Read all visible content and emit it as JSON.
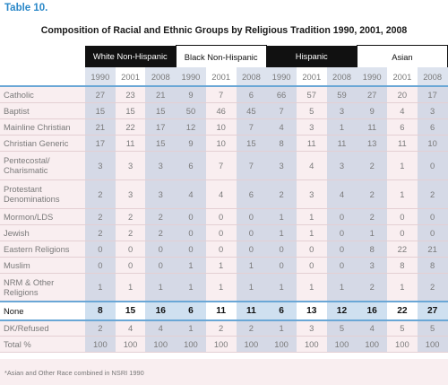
{
  "label": "Table 10.",
  "title": "Composition of Racial and Ethnic Groups by Religious Tradition 1990, 2001, 2008",
  "groups": [
    {
      "name": "White Non-Hispanic",
      "dark": true
    },
    {
      "name": "Black Non-Hispanic",
      "dark": false
    },
    {
      "name": "Hispanic",
      "dark": true
    },
    {
      "name": "Asian",
      "dark": false
    }
  ],
  "years": [
    "1990",
    "2001",
    "2008"
  ],
  "rows": [
    {
      "label": "Catholic",
      "values": [
        "27",
        "23",
        "21",
        "9",
        "7",
        "6",
        "66",
        "57",
        "59",
        "27",
        "20",
        "17"
      ]
    },
    {
      "label": "Baptist",
      "values": [
        "15",
        "15",
        "15",
        "50",
        "46",
        "45",
        "7",
        "5",
        "3",
        "9",
        "4",
        "3"
      ]
    },
    {
      "label": "Mainline Christian",
      "values": [
        "21",
        "22",
        "17",
        "12",
        "10",
        "7",
        "4",
        "3",
        "1",
        "11",
        "6",
        "6"
      ]
    },
    {
      "label": "Christian Generic",
      "values": [
        "17",
        "11",
        "15",
        "9",
        "10",
        "15",
        "8",
        "11",
        "11",
        "13",
        "11",
        "10"
      ]
    },
    {
      "label": "Pentecostal/ Charismatic",
      "values": [
        "3",
        "3",
        "3",
        "6",
        "7",
        "7",
        "3",
        "4",
        "3",
        "2",
        "1",
        "0"
      ]
    },
    {
      "label": "Protestant Denominations",
      "values": [
        "2",
        "3",
        "3",
        "4",
        "4",
        "6",
        "2",
        "3",
        "4",
        "2",
        "1",
        "2"
      ]
    },
    {
      "label": "Mormon/LDS",
      "values": [
        "2",
        "2",
        "2",
        "0",
        "0",
        "0",
        "1",
        "1",
        "0",
        "2",
        "0",
        "0"
      ]
    },
    {
      "label": "Jewish",
      "values": [
        "2",
        "2",
        "2",
        "0",
        "0",
        "0",
        "1",
        "1",
        "0",
        "1",
        "0",
        "0"
      ]
    },
    {
      "label": "Eastern Religions",
      "values": [
        "0",
        "0",
        "0",
        "0",
        "0",
        "0",
        "0",
        "0",
        "0",
        "8",
        "22",
        "21"
      ]
    },
    {
      "label": "Muslim",
      "values": [
        "0",
        "0",
        "0",
        "1",
        "1",
        "1",
        "0",
        "0",
        "0",
        "3",
        "8",
        "8"
      ]
    },
    {
      "label": "NRM & Other Religions",
      "values": [
        "1",
        "1",
        "1",
        "1",
        "1",
        "1",
        "1",
        "1",
        "1",
        "2",
        "1",
        "2"
      ]
    },
    {
      "label": "None",
      "values": [
        "8",
        "15",
        "16",
        "6",
        "11",
        "11",
        "6",
        "13",
        "12",
        "16",
        "22",
        "27"
      ]
    },
    {
      "label": "DK/Refused",
      "values": [
        "2",
        "4",
        "4",
        "1",
        "2",
        "2",
        "1",
        "3",
        "5",
        "4",
        "5",
        "5"
      ]
    },
    {
      "label": "Total %",
      "values": [
        "100",
        "100",
        "100",
        "100",
        "100",
        "100",
        "100",
        "100",
        "100",
        "100",
        "100",
        "100"
      ]
    }
  ],
  "note": "*Asian and Other Race combined in NSRI 1990"
}
